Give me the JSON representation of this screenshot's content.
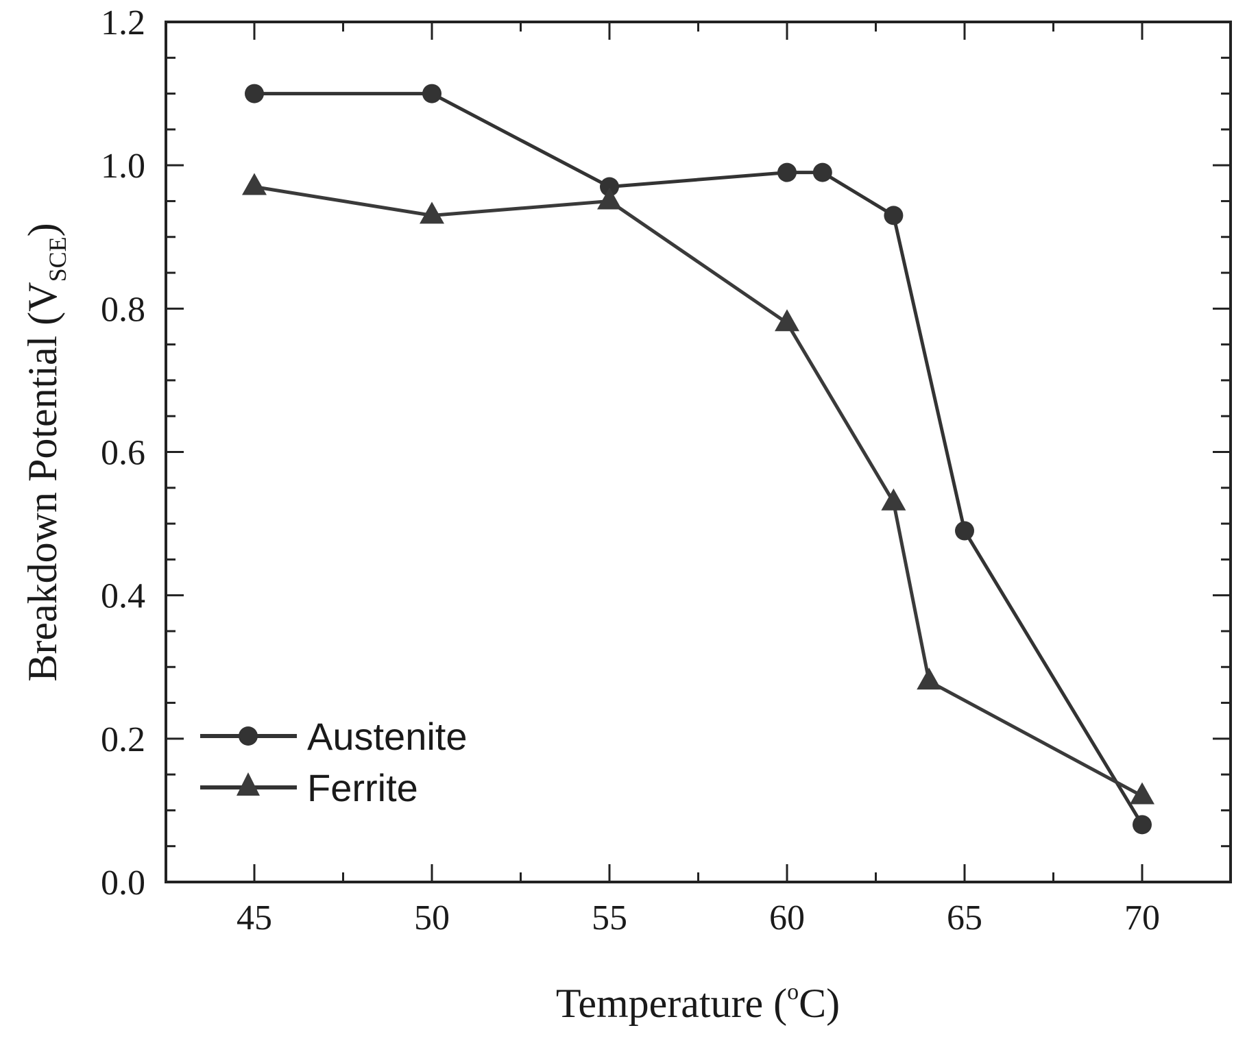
{
  "chart_data": {
    "type": "line",
    "title": "",
    "xlabel": "Temperature (°C)",
    "xlabel_parts": {
      "main": "Temperature (",
      "sup": "o",
      "tail": "C)"
    },
    "ylabel": "Breakdown Potential (V_SCE)",
    "ylabel_parts": {
      "main": "Breakdown Potential (V",
      "sub": "SCE",
      "tail": ")"
    },
    "xlim": [
      42.5,
      72.5
    ],
    "ylim": [
      0.0,
      1.2
    ],
    "x_ticks": [
      45,
      50,
      55,
      60,
      65,
      70
    ],
    "x_tick_labels": [
      "45",
      "50",
      "55",
      "60",
      "65",
      "70"
    ],
    "x_minor_ticks": [
      47.5,
      52.5,
      57.5,
      62.5,
      67.5
    ],
    "y_ticks": [
      0.0,
      0.2,
      0.4,
      0.6,
      0.8,
      1.0,
      1.2
    ],
    "y_tick_labels": [
      "0.0",
      "0.2",
      "0.4",
      "0.6",
      "0.8",
      "1.0",
      "1.2"
    ],
    "y_minor_step": 0.05,
    "grid": false,
    "legend_position": "lower left",
    "series": [
      {
        "name": "Austenite",
        "marker": "circle",
        "color": "#333333",
        "x": [
          45,
          50,
          55,
          60,
          61,
          63,
          65,
          70
        ],
        "values": [
          1.1,
          1.1,
          0.97,
          0.99,
          0.99,
          0.93,
          0.49,
          0.08
        ]
      },
      {
        "name": "Ferrite",
        "marker": "triangle",
        "color": "#3a3a3a",
        "x": [
          45,
          50,
          55,
          60,
          63,
          64,
          70
        ],
        "values": [
          0.97,
          0.93,
          0.95,
          0.78,
          0.53,
          0.28,
          0.12
        ]
      }
    ]
  },
  "legend": {
    "items": [
      {
        "label": "Austenite",
        "marker": "circle"
      },
      {
        "label": "Ferrite",
        "marker": "triangle"
      }
    ]
  },
  "style": {
    "axis_color": "#222222",
    "line_color": "#333333",
    "background": "#ffffff"
  }
}
